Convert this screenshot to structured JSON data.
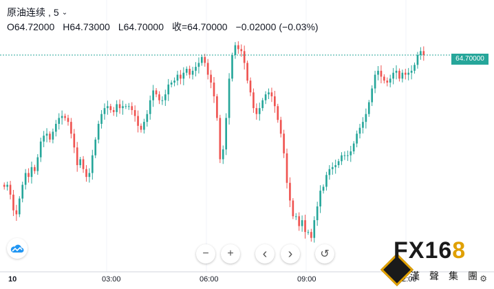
{
  "legend": {
    "symbol": "原油连续",
    "interval": "5",
    "open": "O64.72000",
    "high": "H64.73000",
    "low": "L64.70000",
    "close": "收=64.70000",
    "change": "−0.02000",
    "change_pct": "(−0.03%)"
  },
  "last_price_label": "64.70000",
  "controls": {
    "zoom_out": "−",
    "zoom_in": "+",
    "scroll_left": "‹",
    "scroll_right": "›",
    "reset": "↺"
  },
  "watermark": {
    "brand_main": "FX16",
    "brand_num": "8",
    "brand_sub": "漢聲集團"
  },
  "colors": {
    "up": "#26a69a",
    "down": "#ef5350",
    "last_price_line": "#26a69a"
  },
  "chart_data": {
    "type": "candlestick",
    "title": "",
    "xlabel": "",
    "ylabel": "",
    "x_ticks": [
      "10",
      "03:00",
      "06:00",
      "09:00",
      "12:00"
    ],
    "last_price": 64.7,
    "y_range": [
      63.72,
      64.84
    ],
    "closes": [
      64.03,
      64.04,
      63.99,
      63.91,
      63.89,
      63.97,
      64.04,
      64.1,
      64.08,
      64.13,
      64.11,
      64.18,
      64.26,
      64.29,
      64.3,
      64.27,
      64.31,
      64.35,
      64.38,
      64.39,
      64.38,
      64.36,
      64.3,
      64.23,
      64.14,
      64.17,
      64.12,
      64.08,
      64.1,
      64.19,
      64.27,
      64.35,
      64.4,
      64.43,
      64.44,
      64.42,
      64.41,
      64.45,
      64.43,
      64.44,
      64.44,
      64.44,
      64.42,
      64.39,
      64.34,
      64.32,
      64.36,
      64.4,
      64.47,
      64.52,
      64.5,
      64.47,
      64.47,
      64.5,
      64.55,
      64.56,
      64.57,
      64.6,
      64.58,
      64.61,
      64.63,
      64.6,
      64.62,
      64.64,
      64.66,
      64.69,
      64.66,
      64.6,
      64.56,
      64.49,
      64.38,
      64.17,
      64.22,
      64.38,
      64.58,
      64.7,
      64.75,
      64.73,
      64.72,
      64.66,
      64.57,
      64.51,
      64.43,
      64.4,
      64.43,
      64.47,
      64.5,
      64.51,
      64.49,
      64.44,
      64.37,
      64.3,
      64.2,
      64.05,
      63.96,
      63.88,
      63.88,
      63.83,
      63.86,
      63.8,
      63.8,
      63.77,
      63.86,
      63.93,
      64.01,
      64.03,
      64.09,
      64.12,
      64.13,
      64.14,
      64.16,
      64.19,
      64.19,
      64.19,
      64.21,
      64.25,
      64.3,
      64.33,
      64.36,
      64.4,
      64.46,
      64.53,
      64.6,
      64.62,
      64.59,
      64.57,
      64.56,
      64.58,
      64.61,
      64.62,
      64.58,
      64.61,
      64.6,
      64.61,
      64.62,
      64.65,
      64.7,
      64.72,
      64.7
    ]
  }
}
